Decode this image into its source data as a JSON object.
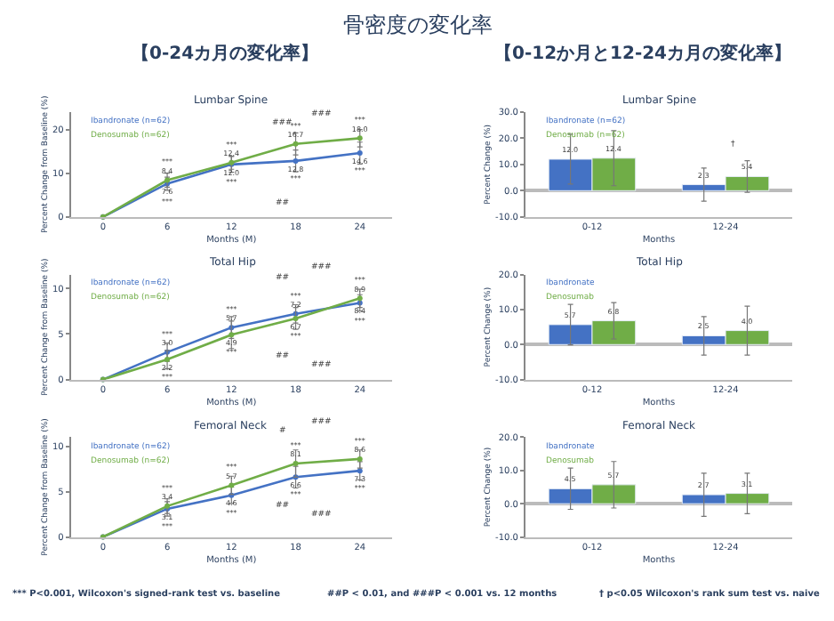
{
  "chart_data": [
    {
      "type": "other",
      "title": "骨密度の変化率",
      "annotations": [
        "【0-24カ月の変化率】",
        "【0-12か月と12-24カ月の変化率】",
        "*** P<0.001, Wilcoxon's signed-rank test vs. baseline",
        "##P < 0.01, and ###P < 0.001 vs. 12 months",
        "† p<0.05 Wilcoxon's rank sum test vs. naive"
      ]
    },
    {
      "type": "line",
      "title": "Lumbar Spine",
      "xlabel": "Months (M)",
      "ylabel": "Percent Change from Baseline (%)",
      "x": [
        0,
        6,
        12,
        18,
        24
      ],
      "xlim": [
        -3,
        27
      ],
      "xticks": [
        0,
        6,
        12,
        18,
        24
      ],
      "ylim": [
        0,
        24
      ],
      "yticks": [
        0,
        10,
        20
      ],
      "marker": "circle",
      "legend": "top left",
      "series": [
        {
          "name": "Ibandronate (n=62)",
          "color": "#4472c4",
          "values": [
            0,
            7.6,
            12.0,
            12.8,
            14.6
          ],
          "errors": [
            null,
            1.5,
            1.8,
            2.5,
            2.5
          ],
          "value_labels": [
            null,
            "7.6\n***",
            "12.0\n***",
            "12.8\n***",
            "14.6\n***"
          ]
        },
        {
          "name": "Denosumab (n=62)",
          "color": "#70ad47",
          "values": [
            0,
            8.4,
            12.4,
            16.7,
            18.0
          ],
          "errors": [
            null,
            1.6,
            1.5,
            2.5,
            2.0
          ],
          "value_labels": [
            null,
            "***\n8.4",
            "***\n12.4",
            "***\n16.7",
            "***\n18.0"
          ]
        }
      ],
      "annotations": [
        "###",
        "###",
        "##"
      ]
    },
    {
      "type": "bar",
      "title": "Lumbar Spine",
      "xlabel": "Months",
      "ylabel": "Percent Change (%)",
      "categories": [
        "0-12",
        "12-24"
      ],
      "ylim": [
        -10,
        30
      ],
      "yticks": [
        {
          "value": -10,
          "label": "-10.0"
        },
        {
          "value": 0,
          "label": "0.0"
        },
        {
          "value": 10,
          "label": "10.0"
        },
        {
          "value": 20,
          "label": "20.0"
        },
        {
          "value": 30,
          "label": "30.0"
        }
      ],
      "legend": "top left",
      "series": [
        {
          "name": "Ibandronate (n=62)",
          "color": "#4472c4",
          "values": [
            12.0,
            2.3
          ],
          "errors": [
            9.5,
            6.3
          ],
          "value_labels": [
            "12.0",
            "2.3"
          ]
        },
        {
          "name": "Denosumab (n=62)",
          "color": "#70ad47",
          "values": [
            12.4,
            5.4
          ],
          "errors": [
            10.5,
            6.0
          ],
          "value_labels": [
            "12.4",
            "5.4"
          ]
        }
      ],
      "annotations": [
        "†"
      ]
    },
    {
      "type": "line",
      "title": "Total Hip",
      "xlabel": "Months (M)",
      "ylabel": "Percent Change from Baseline (%)",
      "x": [
        0,
        6,
        12,
        18,
        24
      ],
      "xlim": [
        -3,
        27
      ],
      "xticks": [
        0,
        6,
        12,
        18,
        24
      ],
      "ylim": [
        0,
        11.5
      ],
      "yticks": [
        0,
        5,
        10
      ],
      "marker": "circle",
      "legend": "top left",
      "series": [
        {
          "name": "Ibandronate (n=62)",
          "color": "#4472c4",
          "values": [
            0,
            3.0,
            5.7,
            7.2,
            8.4
          ],
          "errors": [
            null,
            1.0,
            1.2,
            1.0,
            0.9
          ],
          "value_labels": [
            null,
            "***\n3.0",
            "***\n5.7",
            "***\n7.2",
            "8.4\n***"
          ]
        },
        {
          "name": "Denosumab (n=62)",
          "color": "#70ad47",
          "values": [
            0,
            2.2,
            4.9,
            6.7,
            8.9
          ],
          "errors": [
            null,
            1.0,
            1.5,
            1.2,
            1.0
          ],
          "value_labels": [
            null,
            "2.2\n***",
            "4.9\n***",
            "6.7\n***",
            "***\n8.9"
          ]
        }
      ],
      "annotations": [
        "##",
        "###",
        "##",
        "###"
      ]
    },
    {
      "type": "bar",
      "title": "Total Hip",
      "xlabel": "Months",
      "ylabel": "Percent Change (%)",
      "categories": [
        "0-12",
        "12-24"
      ],
      "ylim": [
        -10,
        20
      ],
      "yticks": [
        {
          "value": -10,
          "label": "-10.0"
        },
        {
          "value": 0,
          "label": "0.0"
        },
        {
          "value": 10,
          "label": "10.0"
        },
        {
          "value": 20,
          "label": "20.0"
        }
      ],
      "legend": "top left",
      "series": [
        {
          "name": "Ibandronate",
          "color": "#4472c4",
          "values": [
            5.7,
            2.5
          ],
          "errors": [
            5.8,
            5.5
          ],
          "value_labels": [
            "5.7",
            "2.5"
          ]
        },
        {
          "name": "Denosumab",
          "color": "#70ad47",
          "values": [
            6.8,
            4.0
          ],
          "errors": [
            5.2,
            7.0
          ],
          "value_labels": [
            "6.8",
            "4.0"
          ]
        }
      ]
    },
    {
      "type": "line",
      "title": "Femoral Neck",
      "xlabel": "Months (M)",
      "ylabel": "Percent Change from Baseline (%)",
      "x": [
        0,
        6,
        12,
        18,
        24
      ],
      "xlim": [
        -3,
        27
      ],
      "xticks": [
        0,
        6,
        12,
        18,
        24
      ],
      "ylim": [
        0,
        11
      ],
      "yticks": [
        0,
        5,
        10
      ],
      "marker": "circle",
      "legend": "top left",
      "series": [
        {
          "name": "Ibandronate (n=62)",
          "color": "#4472c4",
          "values": [
            0,
            3.1,
            4.6,
            6.6,
            7.3
          ],
          "errors": [
            null,
            0.8,
            0.9,
            1.2,
            1.0
          ],
          "value_labels": [
            null,
            "3.1\n***",
            "4.6\n***",
            "6.6\n***",
            "7.3\n***"
          ]
        },
        {
          "name": "Denosumab (n=62)",
          "color": "#70ad47",
          "values": [
            0,
            3.4,
            5.7,
            8.1,
            8.6
          ],
          "errors": [
            null,
            0.8,
            1.0,
            1.5,
            1.0
          ],
          "value_labels": [
            null,
            "***\n3.4",
            "***\n5.7",
            "***\n8.1",
            "***\n8.6"
          ]
        }
      ],
      "annotations": [
        "#",
        "###",
        "##",
        "###"
      ]
    },
    {
      "type": "bar",
      "title": "Femoral Neck",
      "xlabel": "Months",
      "ylabel": "Percent Change (%)",
      "categories": [
        "0-12",
        "12-24"
      ],
      "ylim": [
        -10,
        20
      ],
      "yticks": [
        {
          "value": -10,
          "label": "-10.0"
        },
        {
          "value": 0,
          "label": "0.0"
        },
        {
          "value": 10,
          "label": "10.0"
        },
        {
          "value": 20,
          "label": "20.0"
        }
      ],
      "legend": "top left",
      "series": [
        {
          "name": "Ibandronate",
          "color": "#4472c4",
          "values": [
            4.5,
            2.7
          ],
          "errors": [
            6.2,
            6.5
          ],
          "value_labels": [
            "4.5",
            "2.7"
          ]
        },
        {
          "name": "Denosumab",
          "color": "#70ad47",
          "values": [
            5.7,
            3.1
          ],
          "errors": [
            7.0,
            6.1
          ],
          "value_labels": [
            "5.7",
            "3.1"
          ]
        }
      ]
    }
  ]
}
